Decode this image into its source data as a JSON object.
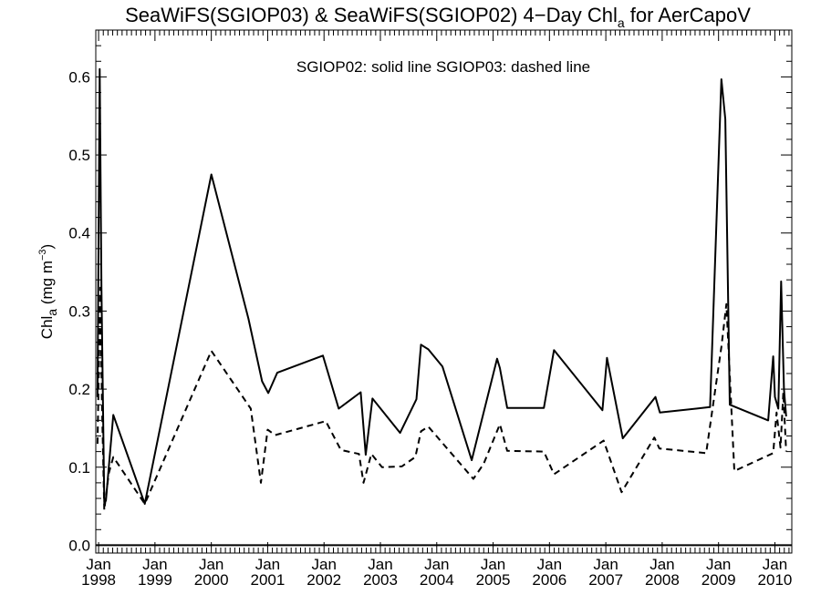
{
  "chart_data": {
    "type": "line",
    "title_prefix": "SeaWiFS(SGIOP03) & SeaWiFS(SGIOP02) 4−Day Chl",
    "title_sub": "a",
    "title_suffix": " for AerCapoV",
    "annotation": "SGIOP02: solid line   SGIOP03: dashed line",
    "ylabel_main": "Chl",
    "ylabel_sub": "a",
    "ylabel_unit": " (mg m",
    "ylabel_sup": "−3",
    "ylabel_close": ")",
    "xlim": [
      1997.95,
      2010.3
    ],
    "ylim": [
      -0.01,
      0.66
    ],
    "yticks": [
      0.0,
      0.1,
      0.2,
      0.3,
      0.4,
      0.5,
      0.6
    ],
    "ytick_labels": [
      "0.0",
      "0.1",
      "0.2",
      "0.3",
      "0.4",
      "0.5",
      "0.6"
    ],
    "xticks": [
      1998,
      1999,
      2000,
      2001,
      2002,
      2003,
      2004,
      2005,
      2006,
      2007,
      2008,
      2009,
      2010
    ],
    "xtick_month": "Jan",
    "xtick_years": [
      "1998",
      "1999",
      "2000",
      "2001",
      "2002",
      "2003",
      "2004",
      "2005",
      "2006",
      "2007",
      "2008",
      "2009",
      "2010"
    ],
    "series": [
      {
        "name": "SGIOP02",
        "style": "solid",
        "x": [
          1997.98,
          1998.02,
          1998.05,
          1998.1,
          1998.13,
          1998.26,
          1998.82,
          2000.0,
          2000.66,
          2000.9,
          2001.01,
          2001.17,
          2001.98,
          2002.26,
          2002.65,
          2002.74,
          2002.86,
          2003.35,
          2003.64,
          2003.72,
          2003.85,
          2004.1,
          2004.62,
          2005.07,
          2005.12,
          2005.25,
          2005.9,
          2006.08,
          2006.94,
          2007.02,
          2007.3,
          2007.88,
          2007.96,
          2008.85,
          2009.05,
          2009.12,
          2009.2,
          2009.88,
          2009.97,
          2010.0,
          2010.06,
          2010.11,
          2010.16,
          2010.2
        ],
        "y": [
          0.19,
          0.61,
          0.33,
          0.055,
          0.057,
          0.167,
          0.053,
          0.475,
          0.29,
          0.21,
          0.195,
          0.221,
          0.243,
          0.175,
          0.196,
          0.116,
          0.188,
          0.144,
          0.187,
          0.257,
          0.251,
          0.229,
          0.109,
          0.239,
          0.227,
          0.176,
          0.176,
          0.25,
          0.173,
          0.24,
          0.137,
          0.19,
          0.17,
          0.177,
          0.597,
          0.546,
          0.18,
          0.16,
          0.242,
          0.19,
          0.175,
          0.338,
          0.2,
          0.165
        ]
      },
      {
        "name": "SGIOP03",
        "style": "dashed",
        "x": [
          1997.98,
          1998.03,
          1998.06,
          1998.1,
          1998.18,
          1998.26,
          1998.82,
          2000.0,
          2000.7,
          2000.88,
          2001.0,
          2001.13,
          2002.03,
          2002.3,
          2002.62,
          2002.7,
          2002.84,
          2003.03,
          2003.38,
          2003.62,
          2003.72,
          2003.85,
          2004.65,
          2004.83,
          2005.12,
          2005.25,
          2005.9,
          2006.08,
          2006.96,
          2007.28,
          2007.86,
          2007.95,
          2008.78,
          2009.05,
          2009.14,
          2009.28,
          2009.97,
          2010.03,
          2010.1,
          2010.15,
          2010.2
        ],
        "y": [
          0.13,
          0.33,
          0.18,
          0.045,
          0.092,
          0.113,
          0.053,
          0.249,
          0.175,
          0.08,
          0.148,
          0.141,
          0.159,
          0.122,
          0.117,
          0.08,
          0.117,
          0.1,
          0.101,
          0.113,
          0.146,
          0.152,
          0.085,
          0.104,
          0.155,
          0.121,
          0.12,
          0.091,
          0.134,
          0.068,
          0.138,
          0.124,
          0.118,
          0.254,
          0.309,
          0.095,
          0.118,
          0.17,
          0.125,
          0.196,
          0.12
        ]
      }
    ]
  }
}
